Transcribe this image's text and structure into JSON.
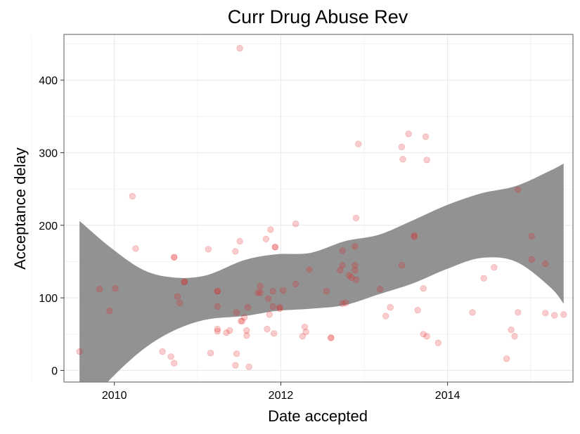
{
  "chart_data": {
    "type": "scatter",
    "title": "Curr Drug Abuse Rev",
    "xlabel": "Date accepted",
    "ylabel": "Acceptance delay",
    "x_ticks": [
      "2010",
      "2012",
      "2014"
    ],
    "y_ticks": [
      "0",
      "100",
      "200",
      "300",
      "400"
    ],
    "xlim": [
      "2009-05-25",
      "2015-07-05"
    ],
    "ylim": [
      -16,
      463
    ],
    "grid": true,
    "legend": "none",
    "colors": {
      "point": "#e31a1c",
      "band": "#8c8c8c",
      "panel_border": "#7f7f7f",
      "grid": "#ebebeb"
    },
    "series": [
      {
        "values": [
          {
            "x": "2009-08-01",
            "y": 26
          },
          {
            "x": "2009-10-28",
            "y": 112
          },
          {
            "x": "2009-12-11",
            "y": 82
          },
          {
            "x": "2010-01-05",
            "y": 113
          },
          {
            "x": "2010-03-21",
            "y": 240
          },
          {
            "x": "2010-04-04",
            "y": 168
          },
          {
            "x": "2010-07-31",
            "y": 26
          },
          {
            "x": "2010-09-06",
            "y": 19
          },
          {
            "x": "2010-09-20",
            "y": 10
          },
          {
            "x": "2010-09-20",
            "y": 156
          },
          {
            "x": "2010-09-20",
            "y": 156
          },
          {
            "x": "2010-10-05",
            "y": 102
          },
          {
            "x": "2010-10-15",
            "y": 93
          },
          {
            "x": "2010-11-04",
            "y": 122
          },
          {
            "x": "2010-11-04",
            "y": 122
          },
          {
            "x": "2011-02-17",
            "y": 167
          },
          {
            "x": "2011-02-27",
            "y": 24
          },
          {
            "x": "2011-03-29",
            "y": 109
          },
          {
            "x": "2011-03-29",
            "y": 109
          },
          {
            "x": "2011-03-29",
            "y": 88
          },
          {
            "x": "2011-03-29",
            "y": 54
          },
          {
            "x": "2011-03-29",
            "y": 57
          },
          {
            "x": "2011-05-07",
            "y": 52
          },
          {
            "x": "2011-05-22",
            "y": 55
          },
          {
            "x": "2011-06-16",
            "y": 164
          },
          {
            "x": "2011-06-16",
            "y": 7
          },
          {
            "x": "2011-06-21",
            "y": 23
          },
          {
            "x": "2011-06-21",
            "y": 80
          },
          {
            "x": "2011-07-05",
            "y": 178
          },
          {
            "x": "2011-07-05",
            "y": 444
          },
          {
            "x": "2011-07-10",
            "y": 68
          },
          {
            "x": "2011-07-15",
            "y": 68
          },
          {
            "x": "2011-07-25",
            "y": 73
          },
          {
            "x": "2011-08-04",
            "y": 55
          },
          {
            "x": "2011-08-04",
            "y": 48
          },
          {
            "x": "2011-08-09",
            "y": 87
          },
          {
            "x": "2011-08-14",
            "y": 5
          },
          {
            "x": "2011-09-23",
            "y": 107
          },
          {
            "x": "2011-10-03",
            "y": 107
          },
          {
            "x": "2011-10-03",
            "y": 116
          },
          {
            "x": "2011-10-28",
            "y": 181
          },
          {
            "x": "2011-11-02",
            "y": 57
          },
          {
            "x": "2011-11-07",
            "y": 99
          },
          {
            "x": "2011-11-12",
            "y": 77
          },
          {
            "x": "2011-11-17",
            "y": 194
          },
          {
            "x": "2011-11-27",
            "y": 109
          },
          {
            "x": "2011-11-27",
            "y": 88
          },
          {
            "x": "2011-12-02",
            "y": 51
          },
          {
            "x": "2011-12-07",
            "y": 170
          },
          {
            "x": "2011-12-07",
            "y": 170
          },
          {
            "x": "2011-12-27",
            "y": 87
          },
          {
            "x": "2011-12-27",
            "y": 85
          },
          {
            "x": "2012-01-11",
            "y": 110
          },
          {
            "x": "2012-03-06",
            "y": 202
          },
          {
            "x": "2012-03-06",
            "y": 119
          },
          {
            "x": "2012-04-05",
            "y": 47
          },
          {
            "x": "2012-04-15",
            "y": 60
          },
          {
            "x": "2012-04-20",
            "y": 53
          },
          {
            "x": "2012-05-05",
            "y": 139
          },
          {
            "x": "2012-07-19",
            "y": 109
          },
          {
            "x": "2012-08-08",
            "y": 45
          },
          {
            "x": "2012-08-08",
            "y": 45
          },
          {
            "x": "2012-09-17",
            "y": 138
          },
          {
            "x": "2012-09-27",
            "y": 145
          },
          {
            "x": "2012-09-27",
            "y": 165
          },
          {
            "x": "2012-09-27",
            "y": 92
          },
          {
            "x": "2012-10-12",
            "y": 93
          },
          {
            "x": "2012-10-27",
            "y": 131
          },
          {
            "x": "2012-11-06",
            "y": 128
          },
          {
            "x": "2012-11-21",
            "y": 145
          },
          {
            "x": "2012-11-21",
            "y": 171
          },
          {
            "x": "2012-11-21",
            "y": 138
          },
          {
            "x": "2012-11-26",
            "y": 125
          },
          {
            "x": "2012-11-26",
            "y": 210
          },
          {
            "x": "2012-12-06",
            "y": 312
          },
          {
            "x": "2013-03-11",
            "y": 112
          },
          {
            "x": "2013-04-05",
            "y": 75
          },
          {
            "x": "2013-04-25",
            "y": 87
          },
          {
            "x": "2013-06-14",
            "y": 308
          },
          {
            "x": "2013-06-14",
            "y": 145
          },
          {
            "x": "2013-06-19",
            "y": 291
          },
          {
            "x": "2013-07-14",
            "y": 326
          },
          {
            "x": "2013-08-08",
            "y": 186
          },
          {
            "x": "2013-08-08",
            "y": 184
          },
          {
            "x": "2013-08-23",
            "y": 83
          },
          {
            "x": "2013-09-17",
            "y": 50
          },
          {
            "x": "2013-09-17",
            "y": 113
          },
          {
            "x": "2013-09-27",
            "y": 322
          },
          {
            "x": "2013-10-02",
            "y": 47
          },
          {
            "x": "2013-10-02",
            "y": 290
          },
          {
            "x": "2013-11-21",
            "y": 38
          },
          {
            "x": "2014-04-20",
            "y": 80
          },
          {
            "x": "2014-06-09",
            "y": 127
          },
          {
            "x": "2014-07-24",
            "y": 142
          },
          {
            "x": "2014-09-17",
            "y": 16
          },
          {
            "x": "2014-10-07",
            "y": 56
          },
          {
            "x": "2014-10-22",
            "y": 47
          },
          {
            "x": "2014-11-06",
            "y": 249
          },
          {
            "x": "2014-11-06",
            "y": 80
          },
          {
            "x": "2015-01-05",
            "y": 185
          },
          {
            "x": "2015-01-05",
            "y": 153
          },
          {
            "x": "2015-03-06",
            "y": 79
          },
          {
            "x": "2015-03-06",
            "y": 147
          },
          {
            "x": "2015-04-15",
            "y": 76
          },
          {
            "x": "2015-05-25",
            "y": 77
          }
        ]
      }
    ],
    "smooth_band": {
      "x": [
        "2009-08-01",
        "2009-12-21",
        "2010-05-11",
        "2010-09-20",
        "2011-02-07",
        "2011-07-25",
        "2011-12-12",
        "2012-05-10",
        "2012-10-07",
        "2013-03-06",
        "2013-08-03",
        "2013-12-31",
        "2014-05-29",
        "2014-10-27",
        "2015-03-26",
        "2015-05-25"
      ],
      "upper": [
        206,
        168,
        138,
        128,
        131,
        152,
        160,
        162,
        178,
        187,
        207,
        228,
        244,
        254,
        275,
        285
      ],
      "lower": [
        -60,
        -10,
        30,
        55,
        70,
        75,
        82,
        85,
        90,
        105,
        120,
        140,
        155,
        150,
        115,
        92
      ]
    }
  }
}
